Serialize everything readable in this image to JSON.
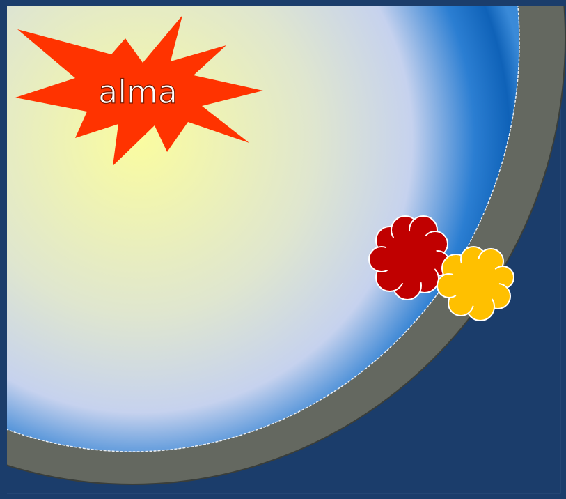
{
  "starburst": {
    "label": "alma"
  }
}
